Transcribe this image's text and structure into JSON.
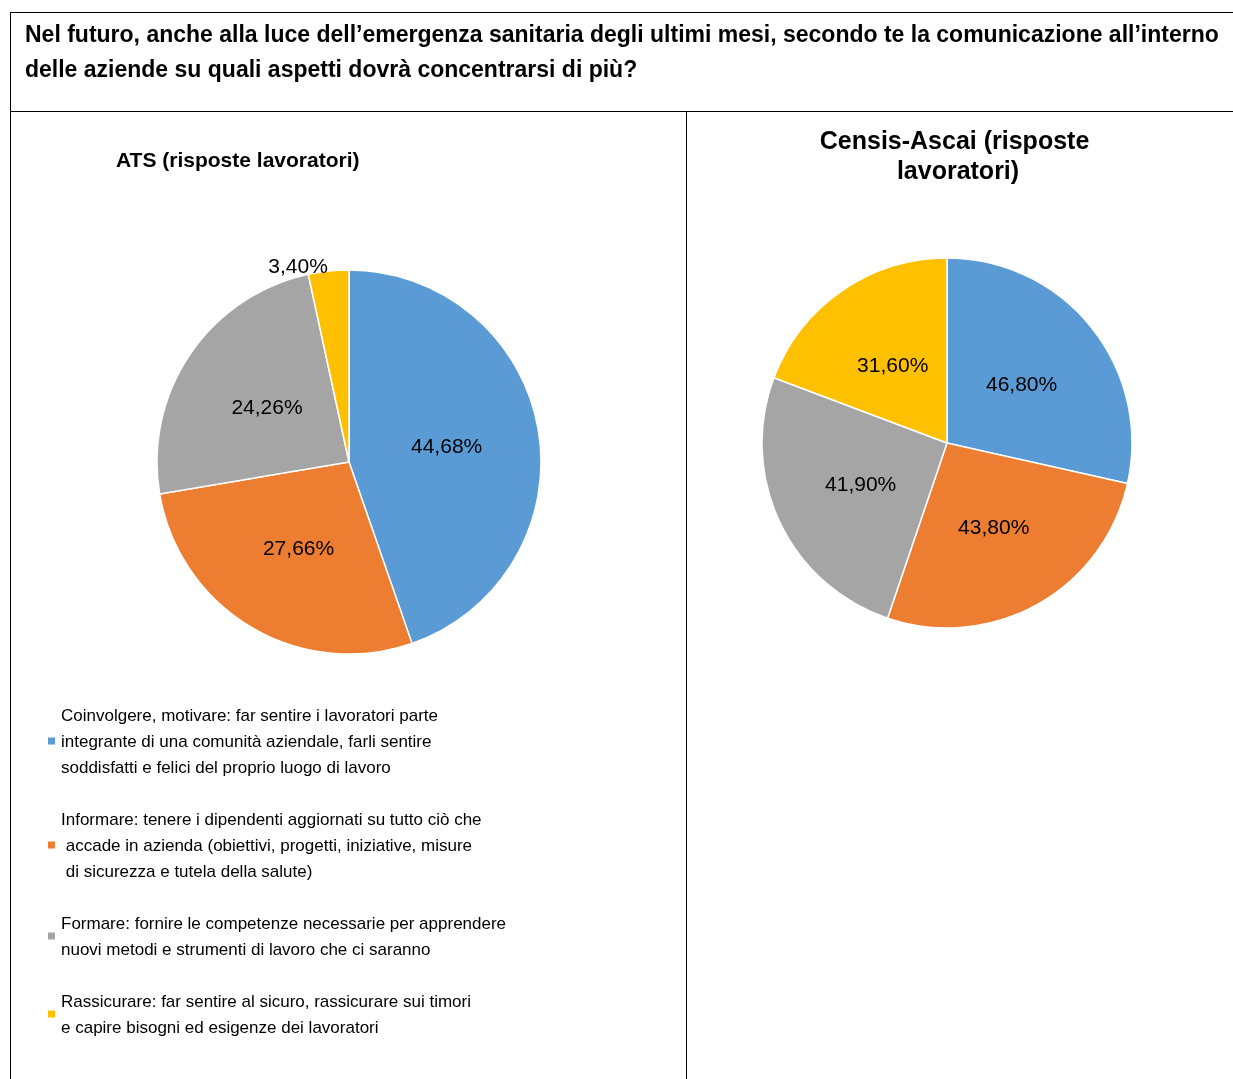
{
  "chart_data": [
    {
      "type": "pie",
      "title": "ATS (risposte lavoratori)",
      "annotations": [
        "Nel futuro, anche alla luce dell’emergenza sanitaria degli ultimi mesi, secondo te la comunicazione all’interno delle aziende su quali aspetti dovrà concentrarsi di più?"
      ],
      "categories": [
        "Coinvolgere, motivare: far sentire i lavoratori parte integrante di una comunità aziendale, farli sentire soddisfatti e felici del proprio luogo di lavoro",
        "Informare: tenere i dipendenti aggiornati su tutto ciò che accade in azienda (obiettivi, progetti, iniziative, misure di sicurezza e tutela della salute)",
        "Formare: fornire le competenze necessarie per apprendere nuovi metodi e strumenti di lavoro che ci saranno",
        "Rassicurare: far sentire al sicuro, rassicurare sui timori e capire bisogni ed esigenze dei lavoratori"
      ],
      "values": [
        44.68,
        27.66,
        24.26,
        3.4
      ],
      "value_labels": [
        "44,68%",
        "27,66%",
        "24,26%",
        "3,40%"
      ],
      "colors": [
        "#5b9bd5",
        "#ed7d31",
        "#a5a5a5",
        "#ffc000"
      ],
      "legend": "bottom"
    },
    {
      "type": "pie",
      "title": "Censis-Ascai (risposte lavoratori)",
      "categories": [
        null,
        null,
        null,
        null
      ],
      "values": [
        46.8,
        43.8,
        41.9,
        31.6
      ],
      "value_labels": [
        "46,80%",
        "43,80%",
        "41,90%",
        "31,60%"
      ],
      "colors": [
        "#5b9bd5",
        "#ed7d31",
        "#a5a5a5",
        "#ffc000"
      ]
    }
  ]
}
